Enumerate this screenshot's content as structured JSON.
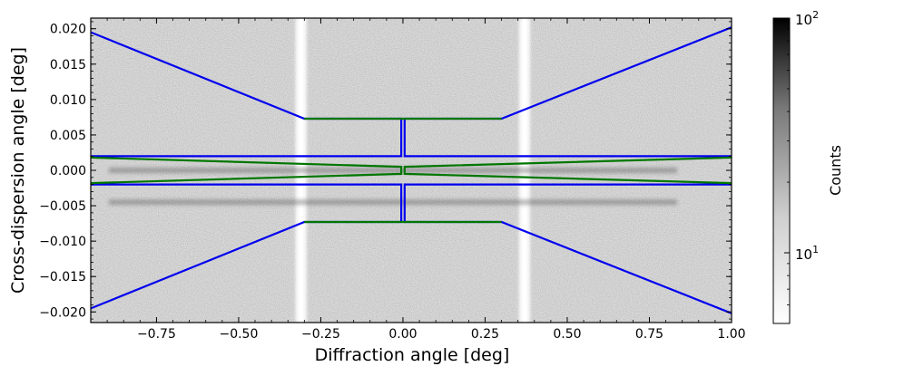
{
  "chart_data": {
    "type": "heatmap",
    "title": "",
    "xlabel": "Diffraction angle [deg]",
    "ylabel": "Cross-dispersion angle [deg]",
    "xlim": [
      -0.95,
      1.0
    ],
    "ylim": [
      -0.0215,
      0.0215
    ],
    "x_ticks": [
      -0.75,
      -0.5,
      -0.25,
      0.0,
      0.25,
      0.5,
      0.75,
      1.0
    ],
    "x_tick_labels": [
      "−0.75",
      "−0.50",
      "−0.25",
      "0.00",
      "0.25",
      "0.50",
      "0.75",
      "1.00"
    ],
    "y_ticks": [
      0.02,
      0.015,
      0.01,
      0.005,
      0.0,
      -0.005,
      -0.01,
      -0.015,
      -0.02
    ],
    "y_tick_labels": [
      "0.020",
      "0.015",
      "0.010",
      "0.005",
      "0.000",
      "−0.005",
      "−0.010",
      "−0.015",
      "−0.020"
    ],
    "colorbar": {
      "label": "Counts",
      "scale": "log",
      "range": [
        5,
        100
      ],
      "ticks": [
        {
          "value": 100,
          "base": "10",
          "exp": "2"
        },
        {
          "value": 10,
          "base": "10",
          "exp": "1"
        }
      ]
    },
    "bright_gaps_x": [
      -0.31,
      0.37
    ],
    "emission_bands_y": [
      0.0,
      -0.0045
    ],
    "series": [
      {
        "name": "blue-outer-region",
        "color": "#0000ee",
        "segments": [
          [
            [
              -0.95,
              0.0195
            ],
            [
              -0.3,
              0.0073
            ],
            [
              -0.005,
              0.0073
            ],
            [
              -0.005,
              0.002
            ],
            [
              -0.95,
              0.002
            ]
          ],
          [
            [
              1.0,
              0.0202
            ],
            [
              0.3,
              0.0073
            ],
            [
              0.005,
              0.0073
            ],
            [
              0.005,
              0.002
            ],
            [
              1.0,
              0.002
            ]
          ],
          [
            [
              -0.95,
              -0.0195
            ],
            [
              -0.3,
              -0.0073
            ],
            [
              -0.005,
              -0.0073
            ],
            [
              -0.005,
              -0.002
            ],
            [
              -0.95,
              -0.002
            ]
          ],
          [
            [
              1.0,
              -0.0202
            ],
            [
              0.3,
              -0.0073
            ],
            [
              0.005,
              -0.0073
            ],
            [
              0.005,
              -0.002
            ],
            [
              1.0,
              -0.002
            ]
          ]
        ]
      },
      {
        "name": "green-source-region",
        "color": "#007700",
        "segments": [
          [
            [
              -0.95,
              0.0018
            ],
            [
              -0.005,
              0.0005
            ],
            [
              -0.005,
              -0.0005
            ],
            [
              -0.95,
              -0.0018
            ]
          ],
          [
            [
              1.0,
              0.0018
            ],
            [
              0.005,
              0.0005
            ],
            [
              0.005,
              -0.0005
            ],
            [
              1.0,
              -0.0018
            ]
          ],
          [
            [
              -0.3,
              0.0073
            ],
            [
              0.3,
              0.0073
            ]
          ],
          [
            [
              -0.3,
              -0.0073
            ],
            [
              0.3,
              -0.0073
            ]
          ]
        ]
      }
    ]
  }
}
